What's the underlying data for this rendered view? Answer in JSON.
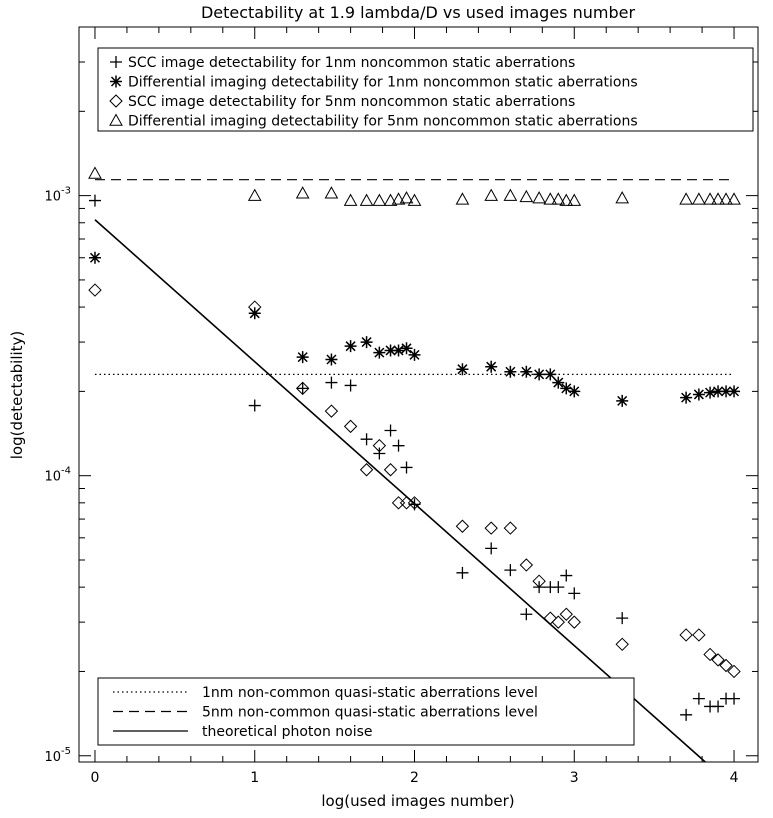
{
  "chart_data": {
    "type": "scatter",
    "title": "Detectability at 1.9 lambda/D vs used images number",
    "xlabel": "log(used images number)",
    "ylabel": "log(detectability)",
    "xlim": [
      -0.1,
      4.15
    ],
    "ylim": [
      9.5e-06,
      0.004
    ],
    "log_y": true,
    "x_ticks": [
      0,
      1,
      2,
      3,
      4
    ],
    "x_tick_labels": [
      "0",
      "1",
      "2",
      "3",
      "4"
    ],
    "y_major_ticks": [
      1e-05,
      0.0001,
      0.001
    ],
    "y_tick_labels": [
      "10^-5",
      "10^-4",
      "10^-3"
    ],
    "legend_top_position": "top",
    "legend_bottom_position": "bottom-left",
    "series": [
      {
        "name": "SCC image detectability for 1nm noncommon static aberrations",
        "marker": "plus",
        "x": [
          0,
          1,
          1.3,
          1.48,
          1.6,
          1.7,
          1.78,
          1.85,
          1.9,
          1.95,
          2.0,
          2.3,
          2.48,
          2.6,
          2.7,
          2.78,
          2.85,
          2.9,
          2.95,
          3.0,
          3.3,
          3.7,
          3.78,
          3.85,
          3.9,
          3.95,
          4.0
        ],
        "y": [
          0.00096,
          0.000178,
          0.000205,
          0.000215,
          0.00021,
          0.000135,
          0.00012,
          0.000145,
          0.000128,
          0.000107,
          7.9e-05,
          4.5e-05,
          5.5e-05,
          4.6e-05,
          3.2e-05,
          4e-05,
          4e-05,
          4e-05,
          4.4e-05,
          3.8e-05,
          3.1e-05,
          1.4e-05,
          1.6e-05,
          1.5e-05,
          1.5e-05,
          1.6e-05,
          1.6e-05
        ]
      },
      {
        "name": "Differential imaging detectability for 1nm noncommon static aberrations",
        "marker": "asterisk",
        "x": [
          0,
          1,
          1.3,
          1.48,
          1.6,
          1.7,
          1.78,
          1.85,
          1.9,
          1.95,
          2.0,
          2.3,
          2.48,
          2.6,
          2.7,
          2.78,
          2.85,
          2.9,
          2.95,
          3.0,
          3.3,
          3.7,
          3.78,
          3.85,
          3.9,
          3.95,
          4.0
        ],
        "y": [
          0.0006,
          0.00038,
          0.000265,
          0.00026,
          0.00029,
          0.0003,
          0.000275,
          0.00028,
          0.00028,
          0.000285,
          0.00027,
          0.00024,
          0.000245,
          0.000235,
          0.000235,
          0.00023,
          0.00023,
          0.000215,
          0.000205,
          0.0002,
          0.000185,
          0.00019,
          0.000195,
          0.000198,
          0.0002,
          0.0002,
          0.0002
        ]
      },
      {
        "name": "SCC image detectability for 5nm noncommon static aberrations",
        "marker": "diamond",
        "x": [
          0,
          1,
          1.3,
          1.48,
          1.6,
          1.7,
          1.78,
          1.85,
          1.9,
          1.95,
          2.0,
          2.3,
          2.48,
          2.6,
          2.7,
          2.78,
          2.85,
          2.9,
          2.95,
          3.0,
          3.3,
          3.7,
          3.78,
          3.85,
          3.9,
          3.95,
          4.0
        ],
        "y": [
          0.00046,
          0.0004,
          0.000205,
          0.00017,
          0.00015,
          0.000105,
          0.000128,
          0.000105,
          8e-05,
          8e-05,
          8e-05,
          6.6e-05,
          6.5e-05,
          6.5e-05,
          4.8e-05,
          4.2e-05,
          3.1e-05,
          3e-05,
          3.2e-05,
          3e-05,
          2.5e-05,
          2.7e-05,
          2.7e-05,
          2.3e-05,
          2.2e-05,
          2.1e-05,
          2e-05
        ]
      },
      {
        "name": "Differential imaging detectability for 5nm noncommon static aberrations",
        "marker": "triangle",
        "x": [
          0,
          1,
          1.3,
          1.48,
          1.6,
          1.7,
          1.78,
          1.85,
          1.9,
          1.95,
          2.0,
          2.3,
          2.48,
          2.6,
          2.7,
          2.78,
          2.85,
          2.9,
          2.95,
          3.0,
          3.3,
          3.7,
          3.78,
          3.85,
          3.9,
          3.95,
          4.0
        ],
        "y": [
          0.0012,
          0.001,
          0.00102,
          0.00102,
          0.00096,
          0.00096,
          0.00096,
          0.00096,
          0.00097,
          0.00098,
          0.00096,
          0.00097,
          0.001,
          0.001,
          0.00099,
          0.00098,
          0.00097,
          0.00097,
          0.00096,
          0.00096,
          0.00098,
          0.00097,
          0.00097,
          0.00097,
          0.00097,
          0.00097,
          0.00097
        ]
      }
    ],
    "reference_lines": [
      {
        "name": "1nm non-common quasi-static aberrations level",
        "style": "dotted",
        "y": 0.00023
      },
      {
        "name": "5nm non-common quasi-static aberrations level",
        "style": "dashed",
        "y": 0.00114
      },
      {
        "name": "theoretical photon noise",
        "style": "solid",
        "x": [
          0,
          3.82
        ],
        "y": [
          0.00082,
          9.5e-06
        ]
      }
    ]
  }
}
